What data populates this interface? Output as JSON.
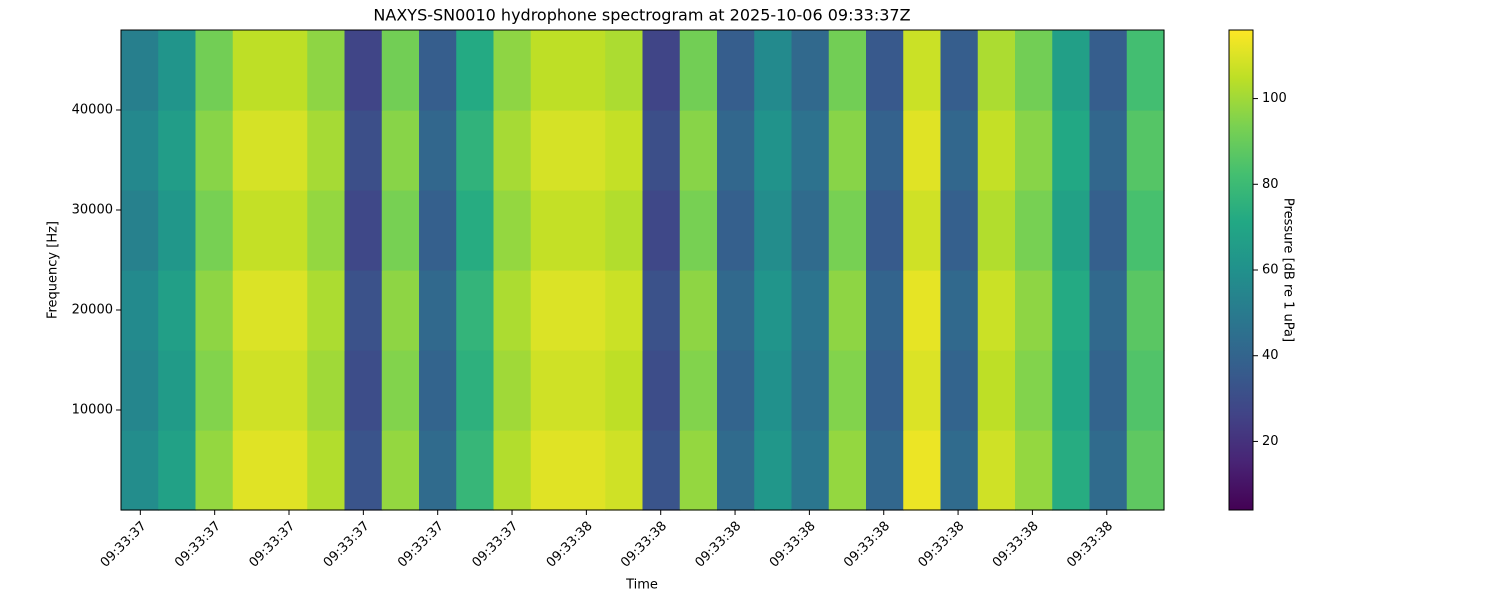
{
  "chart_data": {
    "type": "heatmap",
    "title": "NAXYS-SN0010 hydrophone spectrogram at 2025-10-06 09:33:37Z",
    "xlabel": "Time",
    "ylabel": "Frequency [Hz]",
    "colormap": "viridis",
    "xlim": [
      37.374,
      38.777
    ],
    "xticks": [
      {
        "value": 37.4,
        "label": "09:33:37"
      },
      {
        "value": 37.5,
        "label": "09:33:37"
      },
      {
        "value": 37.6,
        "label": "09:33:37"
      },
      {
        "value": 37.7,
        "label": "09:33:37"
      },
      {
        "value": 37.8,
        "label": "09:33:37"
      },
      {
        "value": 37.9,
        "label": "09:33:37"
      },
      {
        "value": 38.0,
        "label": "09:33:38"
      },
      {
        "value": 38.1,
        "label": "09:33:38"
      },
      {
        "value": 38.2,
        "label": "09:33:38"
      },
      {
        "value": 38.3,
        "label": "09:33:38"
      },
      {
        "value": 38.4,
        "label": "09:33:38"
      },
      {
        "value": 38.5,
        "label": "09:33:38"
      },
      {
        "value": 38.6,
        "label": "09:33:38"
      },
      {
        "value": 38.7,
        "label": "09:33:38"
      }
    ],
    "ylim": [
      0,
      48000
    ],
    "yticks": [
      10000,
      20000,
      30000,
      40000
    ],
    "z": [
      [
        58,
        68,
        98,
        111,
        111,
        103,
        33,
        98,
        43,
        78,
        103,
        111,
        111,
        108,
        33,
        98,
        43,
        63,
        48,
        98,
        41,
        113,
        43,
        108,
        98,
        73,
        43,
        88
      ],
      [
        55,
        65,
        95,
        108,
        108,
        100,
        30,
        95,
        40,
        75,
        100,
        108,
        108,
        105,
        30,
        95,
        40,
        60,
        45,
        95,
        38,
        110,
        40,
        105,
        95,
        70,
        40,
        85
      ],
      [
        57,
        67,
        97,
        110,
        110,
        102,
        32,
        97,
        42,
        77,
        102,
        110,
        110,
        107,
        32,
        97,
        42,
        62,
        47,
        97,
        40,
        112,
        42,
        107,
        97,
        72,
        42,
        87
      ],
      [
        53,
        63,
        93,
        106,
        106,
        98,
        28,
        93,
        38,
        73,
        98,
        106,
        106,
        103,
        28,
        93,
        38,
        58,
        43,
        93,
        36,
        108,
        38,
        103,
        93,
        68,
        38,
        83
      ],
      [
        56,
        66,
        96,
        109,
        109,
        101,
        31,
        96,
        41,
        76,
        101,
        109,
        109,
        106,
        31,
        96,
        41,
        61,
        46,
        96,
        39,
        111,
        41,
        106,
        96,
        71,
        41,
        86
      ],
      [
        52,
        62,
        92,
        105,
        105,
        97,
        27,
        92,
        37,
        72,
        97,
        105,
        105,
        102,
        27,
        92,
        37,
        57,
        42,
        92,
        35,
        107,
        37,
        102,
        92,
        67,
        37,
        82
      ]
    ],
    "colorbar": {
      "label": "Pressure [dB re 1 uPa]",
      "lim": [
        4,
        116
      ],
      "ticks": [
        20,
        40,
        60,
        80,
        100
      ]
    }
  }
}
